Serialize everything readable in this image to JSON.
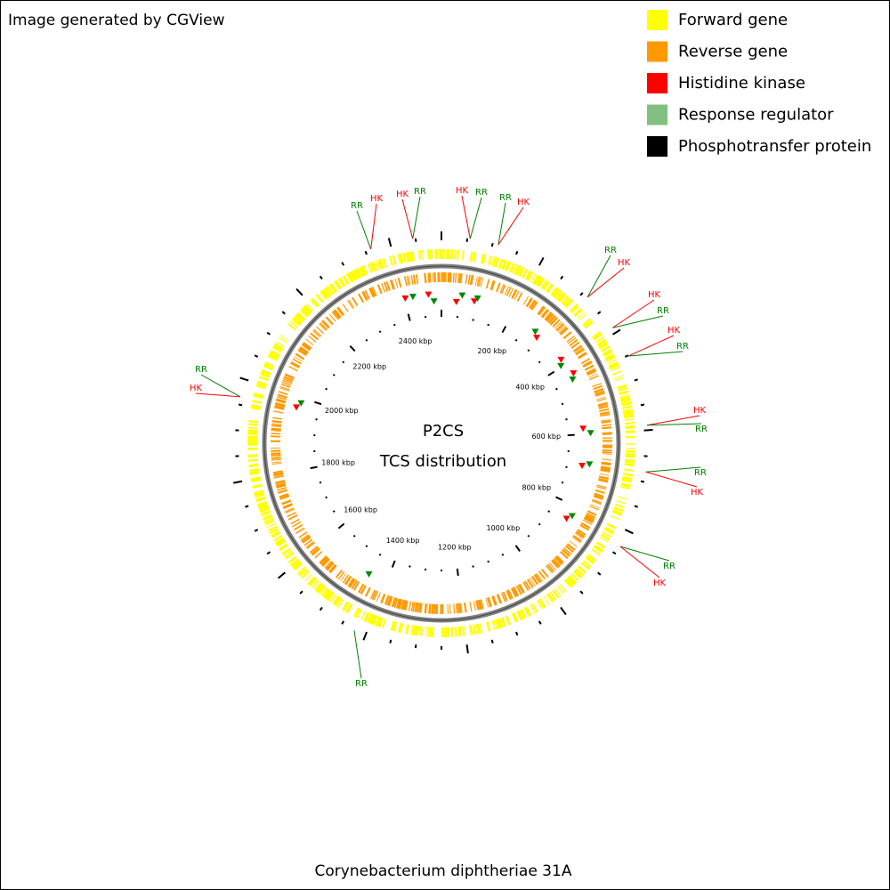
{
  "header": {
    "credit": "Image generated by CGView"
  },
  "legend": [
    {
      "label": "Forward gene",
      "color": "#ffff00"
    },
    {
      "label": "Reverse gene",
      "color": "#ff9900"
    },
    {
      "label": "Histidine kinase",
      "color": "#ff0000"
    },
    {
      "label": "Response regulator",
      "color": "#80c080"
    },
    {
      "label": "Phosphotransfer protein",
      "color": "#000000"
    }
  ],
  "map": {
    "title_lines": [
      "P2CS",
      "TCS distribution"
    ],
    "tick_labels": [
      "200 kbp",
      "400 kbp",
      "600 kbp",
      "800 kbp",
      "1000 kbp",
      "1200 kbp",
      "1400 kbp",
      "1600 kbp",
      "1800 kbp",
      "2000 kbp",
      "2200 kbp",
      "2400 kbp"
    ],
    "feature_labels": [
      {
        "text": "RR",
        "color": "#008000"
      },
      {
        "text": "HK",
        "color": "#ff0000"
      },
      {
        "text": "HK",
        "color": "#ff0000"
      },
      {
        "text": "RR",
        "color": "#008000"
      },
      {
        "text": "HK",
        "color": "#ff0000"
      },
      {
        "text": "RR",
        "color": "#008000"
      },
      {
        "text": "RR",
        "color": "#008000"
      },
      {
        "text": "HK",
        "color": "#ff0000"
      },
      {
        "text": "RR",
        "color": "#008000"
      },
      {
        "text": "HK",
        "color": "#ff0000"
      },
      {
        "text": "HK",
        "color": "#ff0000"
      },
      {
        "text": "RR",
        "color": "#008000"
      },
      {
        "text": "HK",
        "color": "#ff0000"
      },
      {
        "text": "RR",
        "color": "#008000"
      },
      {
        "text": "HK",
        "color": "#ff0000"
      },
      {
        "text": "RR",
        "color": "#008000"
      },
      {
        "text": "RR",
        "color": "#008000"
      },
      {
        "text": "HK",
        "color": "#ff0000"
      },
      {
        "text": "RR",
        "color": "#008000"
      },
      {
        "text": "HK",
        "color": "#ff0000"
      },
      {
        "text": "RR",
        "color": "#008000"
      },
      {
        "text": "RR",
        "color": "#008000"
      },
      {
        "text": "HK",
        "color": "#ff0000"
      }
    ]
  },
  "footer": {
    "organism": "Corynebacterium diphtheriae 31A"
  }
}
